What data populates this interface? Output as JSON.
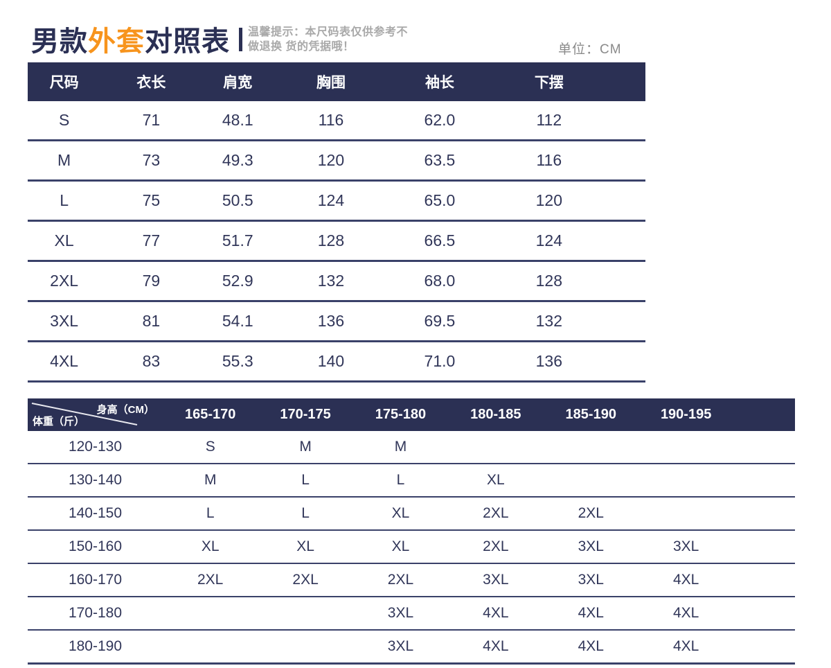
{
  "header": {
    "title_part1": "男款",
    "title_part2": "外套",
    "title_part3": "对照表",
    "tip_line1": "温馨提示：本尺码表仅供参考不",
    "tip_line2": "做退换 货的凭据哦！",
    "unit_label": "单位：CM"
  },
  "size_table": {
    "headers": [
      "尺码",
      "衣长",
      "肩宽",
      "胸围",
      "袖长",
      "下摆"
    ],
    "rows": [
      [
        "S",
        "71",
        "48.1",
        "116",
        "62.0",
        "112"
      ],
      [
        "M",
        "73",
        "49.3",
        "120",
        "63.5",
        "116"
      ],
      [
        "L",
        "75",
        "50.5",
        "124",
        "65.0",
        "120"
      ],
      [
        "XL",
        "77",
        "51.7",
        "128",
        "66.5",
        "124"
      ],
      [
        "2XL",
        "79",
        "52.9",
        "132",
        "68.0",
        "128"
      ],
      [
        "3XL",
        "81",
        "54.1",
        "136",
        "69.5",
        "132"
      ],
      [
        "4XL",
        "83",
        "55.3",
        "140",
        "71.0",
        "136"
      ]
    ]
  },
  "fit_table": {
    "corner": {
      "top_right": "身高（CM）",
      "bottom_left": "体重（斤）"
    },
    "height_headers": [
      "165-170",
      "170-175",
      "175-180",
      "180-185",
      "185-190",
      "190-195"
    ],
    "rows": [
      {
        "weight": "120-130",
        "sizes": [
          "S",
          "M",
          "M",
          "",
          "",
          ""
        ]
      },
      {
        "weight": "130-140",
        "sizes": [
          "M",
          "L",
          "L",
          "XL",
          "",
          ""
        ]
      },
      {
        "weight": "140-150",
        "sizes": [
          "L",
          "L",
          "XL",
          "2XL",
          "2XL",
          ""
        ]
      },
      {
        "weight": "150-160",
        "sizes": [
          "XL",
          "XL",
          "XL",
          "2XL",
          "3XL",
          "3XL"
        ]
      },
      {
        "weight": "160-170",
        "sizes": [
          "2XL",
          "2XL",
          "2XL",
          "3XL",
          "3XL",
          "4XL"
        ]
      },
      {
        "weight": "170-180",
        "sizes": [
          "",
          "",
          "3XL",
          "4XL",
          "4XL",
          "4XL"
        ]
      },
      {
        "weight": "180-190",
        "sizes": [
          "",
          "",
          "3XL",
          "4XL",
          "4XL",
          "4XL"
        ]
      }
    ]
  },
  "colors": {
    "navy": "#2b3054",
    "orange": "#f7941d",
    "row_line": "#3a4169",
    "tip_gray": "#a9a9a9",
    "unit_gray": "#8a8a8a"
  }
}
